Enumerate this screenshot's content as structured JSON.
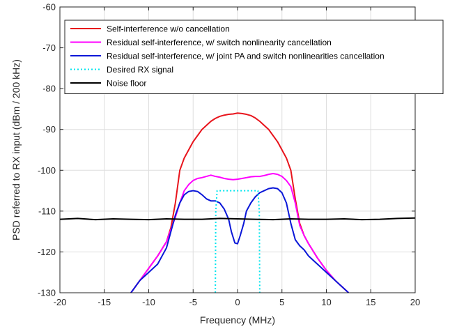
{
  "chart_data": {
    "type": "line",
    "title": "",
    "xlabel": "Frequency (MHz)",
    "ylabel": "PSD referred to RX input (dBm / 200 kHz)",
    "xlim": [
      -20,
      20
    ],
    "ylim": [
      -130,
      -60
    ],
    "xticks": [
      -20,
      -15,
      -10,
      -5,
      0,
      5,
      10,
      15,
      20
    ],
    "yticks": [
      -130,
      -120,
      -110,
      -100,
      -90,
      -80,
      -70,
      -60
    ],
    "xtick_labels": [
      "-20",
      "-15",
      "-10",
      "-5",
      "0",
      "5",
      "10",
      "15",
      "20"
    ],
    "ytick_labels": [
      "-130",
      "-120",
      "-110",
      "-100",
      "-90",
      "-80",
      "-70",
      "-60"
    ],
    "grid": true,
    "legend_position": "top",
    "series": [
      {
        "name": "Self-interference w/o cancellation",
        "color": "#e8141c",
        "style": "solid",
        "x": [
          -12,
          -11,
          -10,
          -9,
          -8,
          -7.5,
          -7,
          -6.5,
          -6,
          -5.5,
          -5,
          -4.5,
          -4,
          -3.5,
          -3,
          -2.5,
          -2,
          -1.5,
          -1,
          -0.5,
          0,
          0.5,
          1,
          1.5,
          2,
          2.5,
          3,
          3.5,
          4,
          4.5,
          5,
          5.5,
          6,
          6.5,
          7,
          7.5,
          8,
          9,
          10,
          11,
          12.5
        ],
        "y": [
          -130,
          -127,
          -124,
          -121,
          -117.5,
          -114,
          -108,
          -100,
          -97,
          -95,
          -93,
          -91.5,
          -90,
          -89,
          -88,
          -87.3,
          -86.8,
          -86.5,
          -86.3,
          -86.2,
          -86,
          -86.1,
          -86.3,
          -86.6,
          -87.2,
          -88,
          -89,
          -90,
          -91.5,
          -93,
          -95,
          -97,
          -100,
          -107,
          -113,
          -116,
          -118,
          -121.5,
          -124.5,
          -127,
          -130
        ]
      },
      {
        "name": "Residual self-interference, w/ switch nonlinearity cancellation",
        "color": "#ff00ff",
        "style": "solid",
        "x": [
          -12,
          -11,
          -10,
          -9,
          -8,
          -7.5,
          -7,
          -6.5,
          -6,
          -5.5,
          -5,
          -4.5,
          -4,
          -3.5,
          -3,
          -2.5,
          -2,
          -1.5,
          -1,
          -0.5,
          0,
          0.5,
          1,
          1.5,
          2,
          2.5,
          3,
          3.5,
          4,
          4.5,
          5,
          5.5,
          6,
          6.5,
          7,
          7.5,
          8,
          9,
          10,
          11,
          12.5
        ],
        "y": [
          -130,
          -127,
          -124,
          -121,
          -117.5,
          -114.5,
          -111.5,
          -108,
          -105,
          -103.5,
          -102.5,
          -102,
          -101.8,
          -101.5,
          -101.2,
          -101.5,
          -101.7,
          -102,
          -102.2,
          -102.3,
          -102.2,
          -102,
          -101.8,
          -101.6,
          -101.5,
          -101.5,
          -101.3,
          -101,
          -100.8,
          -101,
          -101.5,
          -102.5,
          -104,
          -108,
          -113.5,
          -116,
          -118,
          -121.5,
          -124.5,
          -127,
          -130
        ]
      },
      {
        "name": "Residual self-interference, w/ joint PA and switch nonlinearities cancellation",
        "color": "#0a17d8",
        "style": "solid",
        "x": [
          -12,
          -11.5,
          -11,
          -10,
          -9,
          -8,
          -7.5,
          -7,
          -6.5,
          -6,
          -5.5,
          -5,
          -4.5,
          -4,
          -3.5,
          -3,
          -2.5,
          -2,
          -1.5,
          -1,
          -0.7,
          -0.3,
          0,
          0.3,
          0.7,
          1,
          1.5,
          2,
          2.5,
          3,
          3.5,
          4,
          4.5,
          5,
          5.5,
          6,
          6.5,
          7,
          7.5,
          8,
          9,
          10,
          11,
          12.5
        ],
        "y": [
          -130,
          -128.5,
          -127,
          -125,
          -123,
          -119,
          -115,
          -111,
          -108,
          -106,
          -105.2,
          -105,
          -105.2,
          -106,
          -107,
          -107.5,
          -107.5,
          -108,
          -109.5,
          -112,
          -115,
          -117.8,
          -118,
          -116,
          -113,
          -110,
          -108,
          -106.5,
          -105.5,
          -105,
          -104.5,
          -104.3,
          -104.5,
          -105.5,
          -108,
          -113,
          -117,
          -118.5,
          -119.5,
          -121,
          -123,
          -125,
          -127,
          -130
        ]
      },
      {
        "name": "Desired RX signal",
        "color": "#00e5ee",
        "style": "dotted",
        "x": [
          -2.5,
          -2.45,
          -2.3,
          -2,
          -1,
          0,
          1,
          2,
          2.3,
          2.45,
          2.5
        ],
        "y": [
          -130,
          -110,
          -105,
          -105,
          -105,
          -105,
          -105,
          -105,
          -105,
          -110,
          -130
        ]
      },
      {
        "name": "Noise floor",
        "color": "#000000",
        "style": "solid",
        "x": [
          -20,
          -18,
          -16,
          -14,
          -12,
          -10,
          -8,
          -6,
          -4,
          -2,
          0,
          2,
          4,
          6,
          8,
          10,
          12,
          14,
          16,
          18,
          20
        ],
        "y": [
          -112,
          -111.8,
          -112.1,
          -111.9,
          -112,
          -112.1,
          -111.9,
          -112,
          -112,
          -111.8,
          -111.9,
          -112,
          -112.1,
          -111.9,
          -112,
          -112,
          -111.9,
          -112.1,
          -112,
          -111.8,
          -111.7
        ]
      }
    ]
  }
}
